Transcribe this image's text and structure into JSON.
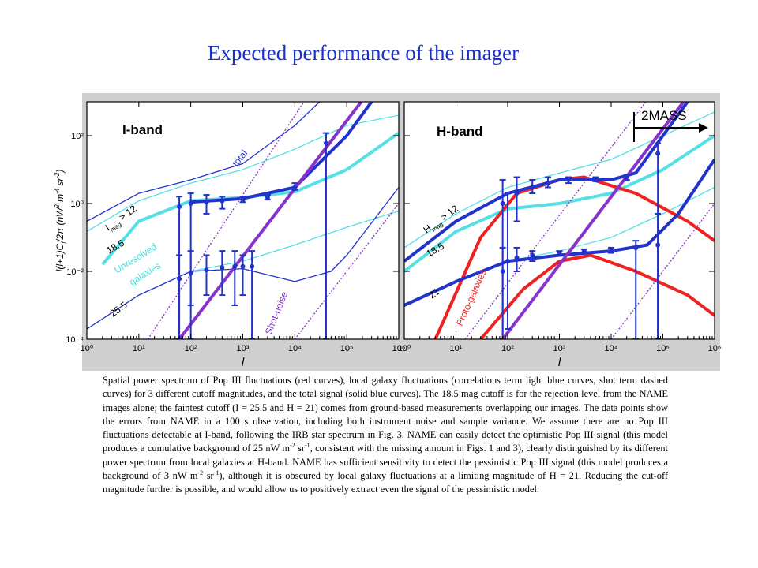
{
  "title": "Expected performance of the imager",
  "chart_data": [
    {
      "type": "line",
      "xscale": "log",
      "yscale": "log",
      "xlim": [
        1,
        1000000
      ],
      "ylim": [
        0.0001,
        1000
      ],
      "xticks": [
        {
          "value": 1,
          "label": "10⁰"
        },
        {
          "value": 10,
          "label": "10¹"
        },
        {
          "value": 100,
          "label": "10²"
        },
        {
          "value": 1000,
          "label": "10³"
        },
        {
          "value": 10000,
          "label": "10⁴"
        },
        {
          "value": 100000,
          "label": "10⁵"
        },
        {
          "value": 1000000,
          "label": "10⁶"
        }
      ],
      "yticks": [
        {
          "value": 0.0001,
          "label": "10⁻⁴"
        },
        {
          "value": 0.01,
          "label": "10⁻²"
        },
        {
          "value": 1,
          "label": "10⁰"
        },
        {
          "value": 100,
          "label": "10²"
        }
      ],
      "xlabel": "l",
      "ylabel": [
        {
          "t": "l(l+1)C"
        },
        {
          "sub": "l"
        },
        {
          "t": "/2π (nW"
        },
        {
          "sup": "2"
        },
        {
          "t": " m"
        },
        {
          "sup": "-4"
        },
        {
          "t": " sr"
        },
        {
          "sup": "-2"
        },
        {
          "t": ")"
        }
      ],
      "annotations": [
        {
          "pieces": [
            {
              "t": "I-band"
            }
          ],
          "color": "#000000"
        },
        {
          "pieces": [
            {
              "t": "total"
            }
          ],
          "color": "#2233cc"
        },
        {
          "pieces": [
            {
              "t": "I"
            },
            {
              "sub": "mag"
            },
            {
              "t": " > 12"
            }
          ],
          "color": "#000000"
        },
        {
          "pieces": [
            {
              "t": "18.5"
            }
          ],
          "color": "#000000"
        },
        {
          "pieces": [
            {
              "t": "Unresolved"
            }
          ],
          "color": "#44dddd"
        },
        {
          "pieces": [
            {
              "t": "galaxies"
            }
          ],
          "color": "#44dddd"
        },
        {
          "pieces": [
            {
              "t": "25.5"
            }
          ],
          "color": "#000000"
        },
        {
          "pieces": [
            {
              "t": "Shot-noise"
            }
          ],
          "color": "#8833cc"
        }
      ],
      "series": [
        {
          "color": "#55e0e6",
          "x": [
            1,
            10,
            100,
            1000,
            10000,
            100000,
            1000000
          ],
          "values": [
            0.15,
            1.2,
            4,
            10,
            40,
            200,
            400
          ]
        },
        {
          "color": "#55e0e6",
          "thick": true,
          "x": [
            2,
            10,
            100,
            1000,
            10000,
            100000,
            1000000
          ],
          "values": [
            0.016,
            0.3,
            1.2,
            1.5,
            2.2,
            10,
            120
          ]
        },
        {
          "color": "#55e0e6",
          "x": [
            100,
            1000,
            10000,
            100000,
            1000000
          ],
          "values": [
            0.01,
            0.02,
            0.06,
            0.2,
            0.6
          ]
        },
        {
          "color": "#2233cc",
          "x": [
            1,
            10,
            100,
            1000,
            10000,
            50000,
            100000,
            1000000
          ],
          "values": [
            0.0002,
            0.002,
            0.01,
            0.012,
            0.005,
            0.01,
            0.03,
            3
          ]
        },
        {
          "color": "#2233cc",
          "thick": true,
          "x": [
            100,
            1000,
            10000,
            100000,
            300000
          ],
          "values": [
            1.1,
            1.4,
            3,
            100,
            1000
          ]
        },
        {
          "color": "#2233cc",
          "x": [
            1,
            10,
            100,
            1000,
            10000,
            30000
          ],
          "values": [
            0.3,
            2,
            5,
            15,
            200,
            1000
          ]
        },
        {
          "color": "#8833cc",
          "dash": true,
          "x": [
            15,
            15000
          ],
          "values": [
            0.0001,
            1000
          ]
        },
        {
          "color": "#8833cc",
          "thick": true,
          "x": [
            60,
            190000
          ],
          "values": [
            0.0001,
            1000
          ]
        },
        {
          "color": "#8833cc",
          "dash": true,
          "x": [
            10000,
            1000000
          ],
          "values": [
            0.0001,
            1
          ]
        },
        {
          "color": "#2233cc",
          "points": true,
          "x": [
            60,
            100,
            200,
            400,
            1000,
            3000,
            10000,
            40000
          ],
          "values": [
            0.8,
            1.0,
            1.1,
            1.2,
            1.3,
            1.5,
            3,
            60
          ],
          "low": [
            0.0001,
            0.001,
            0.5,
            0.7,
            1.1,
            1.3,
            2.5,
            0.0001
          ],
          "high": [
            1.6,
            2,
            1.8,
            1.6,
            1.6,
            1.8,
            4,
            120
          ]
        },
        {
          "color": "#2233cc",
          "points": true,
          "x": [
            60,
            100,
            200,
            400,
            700,
            1000,
            1500
          ],
          "values": [
            0.006,
            0.009,
            0.011,
            0.013,
            0.014,
            0.014,
            0.014
          ],
          "low": [
            0.0001,
            0.0001,
            0.002,
            0.002,
            0.001,
            0.002,
            0.0001
          ],
          "high": [
            0.03,
            0.04,
            0.03,
            0.04,
            0.04,
            0.03,
            0.04
          ]
        }
      ]
    },
    {
      "type": "line",
      "xscale": "log",
      "yscale": "log",
      "xlim": [
        1,
        1000000
      ],
      "ylim": [
        0.0001,
        1000
      ],
      "xticks": [
        {
          "value": 1,
          "label": "10⁰"
        },
        {
          "value": 10,
          "label": "10¹"
        },
        {
          "value": 100,
          "label": "10²"
        },
        {
          "value": 1000,
          "label": "10³"
        },
        {
          "value": 10000,
          "label": "10⁴"
        },
        {
          "value": 100000,
          "label": "10⁵"
        },
        {
          "value": 1000000,
          "label": "10⁶"
        }
      ],
      "yticks": [
        0.0001,
        0.01,
        1,
        100
      ],
      "ytick_labels": false,
      "xlabel": "l",
      "annotations": [
        {
          "pieces": [
            {
              "t": "H-band"
            }
          ],
          "color": "#000000"
        },
        {
          "pieces": [
            {
              "t": "2MASS"
            }
          ],
          "color": "#000000"
        },
        {
          "pieces": [
            {
              "t": "H"
            },
            {
              "sub": "mag"
            },
            {
              "t": " > 12"
            }
          ],
          "color": "#000000"
        },
        {
          "pieces": [
            {
              "t": "18.5"
            }
          ],
          "color": "#000000"
        },
        {
          "pieces": [
            {
              "t": "21"
            }
          ],
          "color": "#000000"
        },
        {
          "pieces": [
            {
              "t": "Proto-galaxies"
            }
          ],
          "color": "#ee2222"
        }
      ],
      "series": [
        {
          "color": "#55e0e6",
          "x": [
            1,
            10,
            100,
            1000,
            10000,
            100000,
            1000000
          ],
          "values": [
            0.05,
            0.5,
            3,
            8,
            20,
            100,
            500
          ]
        },
        {
          "color": "#55e0e6",
          "x": [
            100,
            1000,
            10000,
            100000,
            1000000
          ],
          "values": [
            0.02,
            0.04,
            0.1,
            0.5,
            3
          ]
        },
        {
          "color": "#55e0e6",
          "thick": true,
          "x": [
            1,
            10,
            100,
            1000,
            10000,
            100000,
            1000000
          ],
          "values": [
            0.01,
            0.15,
            0.7,
            1,
            2,
            10,
            100
          ]
        },
        {
          "color": "#ee2222",
          "thick": true,
          "x": [
            4,
            30,
            150,
            1000,
            3000,
            30000,
            300000,
            1000000
          ],
          "values": [
            0.0001,
            0.1,
            2,
            5,
            6,
            2,
            0.3,
            0.08
          ]
        },
        {
          "color": "#ee2222",
          "thick": true,
          "x": [
            30,
            200,
            1000,
            4000,
            30000,
            300000,
            1000000
          ],
          "values": [
            0.0001,
            0.003,
            0.02,
            0.03,
            0.01,
            0.002,
            0.0005
          ]
        },
        {
          "color": "#2233cc",
          "thick": true,
          "x": [
            1,
            10,
            100,
            1000,
            10000,
            30000,
            100000,
            300000
          ],
          "values": [
            0.02,
            0.3,
            2,
            5,
            5,
            8,
            100,
            1000
          ]
        },
        {
          "color": "#2233cc",
          "thick": true,
          "x": [
            1,
            10,
            100,
            1000,
            10000,
            50000,
            200000,
            1000000
          ],
          "values": [
            0.001,
            0.005,
            0.02,
            0.03,
            0.04,
            0.06,
            0.5,
            20
          ]
        },
        {
          "color": "#8833cc",
          "dash": true,
          "x": [
            15,
            47000
          ],
          "values": [
            0.0001,
            1000
          ]
        },
        {
          "color": "#8833cc",
          "thick": true,
          "x": [
            80,
            250000
          ],
          "values": [
            0.0001,
            1000
          ]
        },
        {
          "color": "#8833cc",
          "dash": true,
          "x": [
            10000,
            1000000
          ],
          "values": [
            0.0001,
            1
          ]
        },
        {
          "color": "#2233cc",
          "points": true,
          "x": [
            80,
            150,
            300,
            600,
            1500,
            5000,
            20000,
            80000
          ],
          "values": [
            1,
            2,
            3,
            4,
            5,
            5,
            6,
            30
          ],
          "low": [
            0.0001,
            0.3,
            2,
            3,
            4,
            4.5,
            5,
            0.0001
          ],
          "high": [
            5,
            6,
            5,
            6,
            6,
            6,
            7,
            60
          ]
        },
        {
          "color": "#2233cc",
          "points": true,
          "x": [
            80,
            100,
            150,
            300,
            1000,
            3000,
            10000,
            30000,
            80000
          ],
          "values": [
            0.01,
            0.02,
            0.025,
            0.03,
            0.035,
            0.04,
            0.04,
            0.05,
            0.06
          ],
          "low": [
            0.0001,
            0.0002,
            0.01,
            0.02,
            0.03,
            0.035,
            0.035,
            0.0001,
            0.0001
          ],
          "high": [
            0.05,
            2,
            0.05,
            0.04,
            0.04,
            0.045,
            0.05,
            0.08,
            0.5
          ]
        }
      ]
    }
  ],
  "caption": [
    "Spatial power spectrum of Pop III fluctuations (red curves), local galaxy fluctuations (correlations term light blue curves, shot term dashed curves) for 3 different cutoff magnitudes, and the total signal (solid blue curves).  The 18.5 mag cutoff is for the rejection level from the NAME images alone; the faintest cutoff (I = 25.5 and H = 21) comes from ground-based measurements overlapping our images.  The data points show the errors from NAME in a 100 s observation, including both instrument noise and sample variance.  We assume there are no Pop III fluctuations detectable at I-band, following the IRB star spectrum in Fig. 3.  NAME can easily detect the optimistic Pop III signal (this model produces a cumulative background of 25 nW m",
    "-2",
    " sr",
    "-1",
    ", consistent with the missing amount in Figs. 1 and 3), clearly distinguished by its different power spectrum from local galaxies at H-band.  NAME has sufficient sensitivity to detect the pessimistic Pop III signal (this model produces a background of 3 nW m",
    "-2",
    " sr",
    "-1",
    "), although it is obscured by local galaxy fluctuations at a limiting magnitude of H = 21.  Reducing the cut-off magnitude further is possible, and would allow us to positively extract even the signal of the pessimistic model."
  ]
}
